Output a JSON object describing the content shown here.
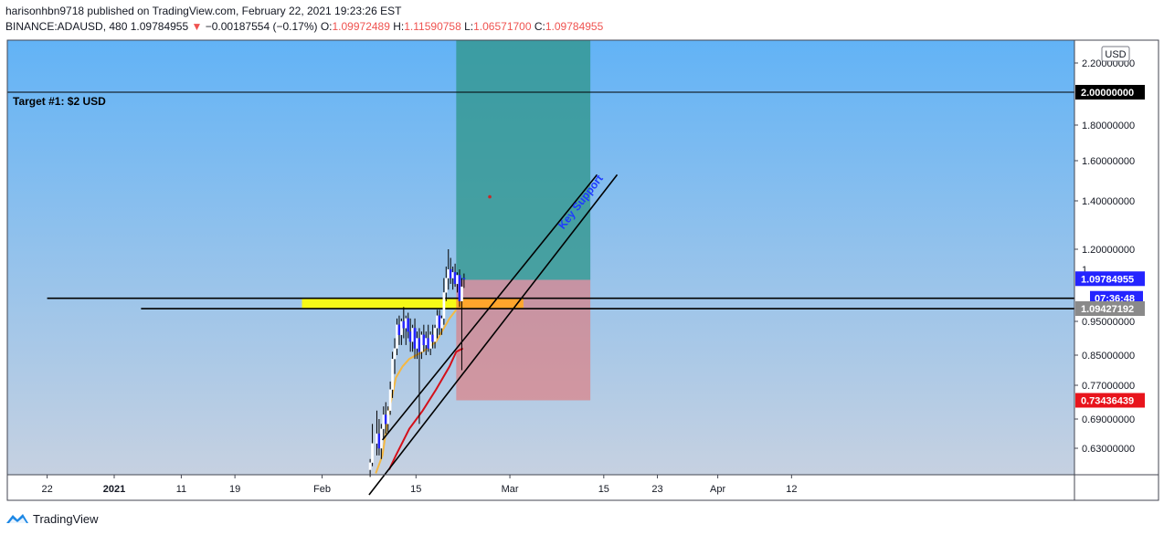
{
  "header": {
    "publisher": "harisonhbn9718",
    "published_text": "published on TradingView.com, February 22, 2021 19:23:26 EST",
    "symbol": "BINANCE:ADAUSD, 480",
    "last": "1.09784955",
    "change_arrow": "▼",
    "change": "−0.00187554 (−0.17%)",
    "o_label": "O:",
    "o": "1.09972489",
    "h_label": "H:",
    "h": "1.11590758",
    "l_label": "L:",
    "l": "1.06571700",
    "c_label": "C:",
    "c": "1.09784955"
  },
  "footer": {
    "brand": "TradingView",
    "logo_icon": "tradingview-logo-icon"
  },
  "chart_data": {
    "type": "candlestick",
    "symbol": "ADAUSD",
    "exchange": "BINANCE",
    "interval": "480",
    "currency": "USD",
    "y_axis": {
      "min": 0.6,
      "max": 2.28,
      "tick_labels": [
        "2.20000000",
        "1.80000000",
        "1.60000000",
        "1.40000000",
        "1.20000000",
        "0.95000000",
        "0.85000000",
        "0.77000000",
        "0.69000000",
        "0.63000000"
      ],
      "tick_values": [
        2.2,
        1.8,
        1.6,
        1.4,
        1.2,
        0.95,
        0.85,
        0.77,
        0.69,
        0.63
      ],
      "partial_label": "1."
    },
    "x_axis": {
      "labels": [
        "22",
        "2021",
        "11",
        "19",
        "Feb",
        "15",
        "Mar",
        "15",
        "23",
        "Apr",
        "12"
      ],
      "dates": [
        "2020-12-22",
        "2021-01-01",
        "2021-01-11",
        "2021-01-19",
        "2021-02-01",
        "2021-02-15",
        "2021-03-01",
        "2021-03-15",
        "2021-03-23",
        "2021-04-01",
        "2021-04-12"
      ]
    },
    "price_badges": [
      {
        "label": "2.00000000",
        "value": 2.0,
        "color": "#000000"
      },
      {
        "label": "1.09784955",
        "value": 1.09784955,
        "color": "#2424ff"
      },
      {
        "label": "07:36:48",
        "value": 1.03,
        "color": "#2424ff"
      },
      {
        "label": "1.09427192",
        "value": 0.9943,
        "color": "#8a8a8a"
      },
      {
        "label": "0.73436439",
        "value": 0.73436439,
        "color": "#e8141c"
      }
    ],
    "target_label": "Target #1: $2 USD",
    "target_price": 2.0,
    "annotation": "Key Support",
    "position": {
      "entry": 1.094,
      "target": 2.28,
      "stop": 0.73436439,
      "start": "2021-02-21",
      "end": "2021-03-13"
    },
    "horizontal_lines": [
      {
        "value": 1.03,
        "from": "2020-12-22"
      },
      {
        "value": 0.994,
        "from": "2021-01-05"
      }
    ],
    "support_zone": {
      "from": "2021-01-29",
      "to": "2021-03-03",
      "top": 1.03,
      "bottom": 0.994,
      "color": "#ffff00"
    },
    "trendlines": [
      {
        "x1": "2021-02-10",
        "y1": 0.647,
        "x2": "2021-03-14",
        "y2": 1.53
      },
      {
        "x1": "2021-02-08",
        "y1": 0.5,
        "x2": "2021-03-17",
        "y2": 1.53
      }
    ],
    "candles": [
      {
        "date": "2021-02-08",
        "open": 0.57,
        "high": 0.6,
        "low": 0.55,
        "close": 0.59
      },
      {
        "date": "2021-02-08",
        "open": 0.59,
        "high": 0.68,
        "low": 0.58,
        "close": 0.64
      },
      {
        "date": "2021-02-09",
        "open": 0.64,
        "high": 0.71,
        "low": 0.61,
        "close": 0.66
      },
      {
        "date": "2021-02-09",
        "open": 0.66,
        "high": 0.69,
        "low": 0.61,
        "close": 0.63
      },
      {
        "date": "2021-02-09",
        "open": 0.63,
        "high": 0.68,
        "low": 0.6,
        "close": 0.67
      },
      {
        "date": "2021-02-10",
        "open": 0.67,
        "high": 0.72,
        "low": 0.65,
        "close": 0.7
      },
      {
        "date": "2021-02-10",
        "open": 0.7,
        "high": 0.73,
        "low": 0.66,
        "close": 0.68
      },
      {
        "date": "2021-02-10",
        "open": 0.68,
        "high": 0.72,
        "low": 0.66,
        "close": 0.71
      },
      {
        "date": "2021-02-11",
        "open": 0.71,
        "high": 0.78,
        "low": 0.7,
        "close": 0.76
      },
      {
        "date": "2021-02-11",
        "open": 0.76,
        "high": 0.86,
        "low": 0.74,
        "close": 0.84
      },
      {
        "date": "2021-02-11",
        "open": 0.84,
        "high": 0.9,
        "low": 0.8,
        "close": 0.87
      },
      {
        "date": "2021-02-12",
        "open": 0.87,
        "high": 0.96,
        "low": 0.85,
        "close": 0.94
      },
      {
        "date": "2021-02-12",
        "open": 0.94,
        "high": 0.97,
        "low": 0.88,
        "close": 0.91
      },
      {
        "date": "2021-02-12",
        "open": 0.91,
        "high": 0.96,
        "low": 0.88,
        "close": 0.95
      },
      {
        "date": "2021-02-13",
        "open": 0.95,
        "high": 1.0,
        "low": 0.9,
        "close": 0.93
      },
      {
        "date": "2021-02-13",
        "open": 0.93,
        "high": 0.97,
        "low": 0.88,
        "close": 0.96
      },
      {
        "date": "2021-02-13",
        "open": 0.96,
        "high": 0.98,
        "low": 0.9,
        "close": 0.92
      },
      {
        "date": "2021-02-14",
        "open": 0.92,
        "high": 0.96,
        "low": 0.86,
        "close": 0.89
      },
      {
        "date": "2021-02-14",
        "open": 0.89,
        "high": 0.94,
        "low": 0.86,
        "close": 0.93
      },
      {
        "date": "2021-02-14",
        "open": 0.93,
        "high": 0.96,
        "low": 0.84,
        "close": 0.87
      },
      {
        "date": "2021-02-15",
        "open": 0.87,
        "high": 0.92,
        "low": 0.84,
        "close": 0.9
      },
      {
        "date": "2021-02-15",
        "open": 0.9,
        "high": 0.93,
        "low": 0.68,
        "close": 0.86
      },
      {
        "date": "2021-02-15",
        "open": 0.86,
        "high": 0.92,
        "low": 0.84,
        "close": 0.91
      },
      {
        "date": "2021-02-16",
        "open": 0.91,
        "high": 0.94,
        "low": 0.86,
        "close": 0.88
      },
      {
        "date": "2021-02-16",
        "open": 0.88,
        "high": 0.92,
        "low": 0.85,
        "close": 0.9
      },
      {
        "date": "2021-02-16",
        "open": 0.9,
        "high": 0.94,
        "low": 0.86,
        "close": 0.87
      },
      {
        "date": "2021-02-17",
        "open": 0.87,
        "high": 0.92,
        "low": 0.85,
        "close": 0.91
      },
      {
        "date": "2021-02-17",
        "open": 0.91,
        "high": 0.94,
        "low": 0.87,
        "close": 0.89
      },
      {
        "date": "2021-02-17",
        "open": 0.89,
        "high": 0.94,
        "low": 0.87,
        "close": 0.93
      },
      {
        "date": "2021-02-18",
        "open": 0.93,
        "high": 0.99,
        "low": 0.9,
        "close": 0.97
      },
      {
        "date": "2021-02-18",
        "open": 0.97,
        "high": 0.99,
        "low": 0.91,
        "close": 0.93
      },
      {
        "date": "2021-02-18",
        "open": 0.93,
        "high": 0.97,
        "low": 0.91,
        "close": 0.96
      },
      {
        "date": "2021-02-19",
        "open": 0.96,
        "high": 1.1,
        "low": 0.94,
        "close": 1.05
      },
      {
        "date": "2021-02-19",
        "open": 1.05,
        "high": 1.14,
        "low": 1.02,
        "close": 1.1
      },
      {
        "date": "2021-02-19",
        "open": 1.1,
        "high": 1.2,
        "low": 1.06,
        "close": 1.13
      },
      {
        "date": "2021-02-20",
        "open": 1.13,
        "high": 1.17,
        "low": 1.08,
        "close": 1.1
      },
      {
        "date": "2021-02-20",
        "open": 1.1,
        "high": 1.14,
        "low": 1.06,
        "close": 1.12
      },
      {
        "date": "2021-02-20",
        "open": 1.12,
        "high": 1.15,
        "low": 1.07,
        "close": 1.08
      },
      {
        "date": "2021-02-21",
        "open": 1.08,
        "high": 1.12,
        "low": 1.05,
        "close": 1.11
      },
      {
        "date": "2021-02-21",
        "open": 1.11,
        "high": 1.13,
        "low": 1.0,
        "close": 1.02
      },
      {
        "date": "2021-02-21",
        "open": 1.02,
        "high": 1.1,
        "low": 0.81,
        "close": 1.07
      },
      {
        "date": "2021-02-22",
        "open": 1.09972489,
        "high": 1.11590758,
        "low": 1.065717,
        "close": 1.09784955
      }
    ],
    "ma_fast": [
      {
        "date": "2021-02-09",
        "value": 0.56
      },
      {
        "date": "2021-02-10",
        "value": 0.61
      },
      {
        "date": "2021-02-11",
        "value": 0.71
      },
      {
        "date": "2021-02-12",
        "value": 0.79
      },
      {
        "date": "2021-02-13",
        "value": 0.82
      },
      {
        "date": "2021-02-14",
        "value": 0.84
      },
      {
        "date": "2021-02-16",
        "value": 0.86
      },
      {
        "date": "2021-02-18",
        "value": 0.89
      },
      {
        "date": "2021-02-20",
        "value": 0.96
      },
      {
        "date": "2021-02-21",
        "value": 0.99
      }
    ],
    "ma_slow": [
      {
        "date": "2021-02-11",
        "value": 0.57
      },
      {
        "date": "2021-02-12",
        "value": 0.61
      },
      {
        "date": "2021-02-14",
        "value": 0.67
      },
      {
        "date": "2021-02-16",
        "value": 0.71
      },
      {
        "date": "2021-02-18",
        "value": 0.76
      },
      {
        "date": "2021-02-20",
        "value": 0.82
      },
      {
        "date": "2021-02-21",
        "value": 0.86
      },
      {
        "date": "2021-02-22",
        "value": 0.87
      }
    ],
    "target_marker": {
      "date": "2021-02-26",
      "value": 1.42
    }
  }
}
